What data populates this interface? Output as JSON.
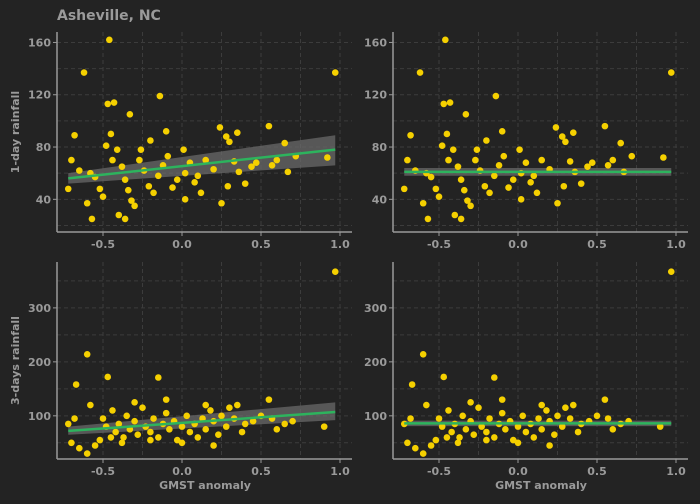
{
  "title": "Asheville, NC",
  "colors": {
    "background": "#232323",
    "point": "#f5d000",
    "fit_line": "#2db35d",
    "band": "#6a6a6a",
    "axis": "#9a9a9a",
    "grid": "#3c3c3c"
  },
  "chart_data": [
    {
      "type": "scatter",
      "panel": "top-left",
      "xlabel": "",
      "ylabel": "1-day rainfall",
      "xlim": [
        -0.8,
        1.0
      ],
      "ylim": [
        15,
        168
      ],
      "xticks": [
        -0.5,
        0.0,
        0.5,
        1.0
      ],
      "yticks": [
        40,
        80,
        120,
        160
      ],
      "grid": true,
      "fit": "linear",
      "fit_line": {
        "x": [
          -0.72,
          0.97
        ],
        "y": [
          56,
          78
        ]
      },
      "band": {
        "x": [
          -0.72,
          0.97
        ],
        "lower": [
          52,
          66
        ],
        "upper": [
          60,
          89
        ]
      },
      "points": [
        [
          -0.62,
          137
        ],
        [
          -0.46,
          162
        ],
        [
          -0.43,
          114
        ],
        [
          -0.14,
          119
        ],
        [
          0.97,
          137
        ],
        [
          -0.47,
          113
        ],
        [
          -0.33,
          105
        ],
        [
          -0.68,
          89
        ],
        [
          -0.7,
          70
        ],
        [
          -0.58,
          60
        ],
        [
          -0.55,
          57
        ],
        [
          -0.52,
          48
        ],
        [
          -0.5,
          42
        ],
        [
          -0.48,
          81
        ],
        [
          -0.45,
          90
        ],
        [
          -0.41,
          78
        ],
        [
          -0.38,
          65
        ],
        [
          -0.36,
          55
        ],
        [
          -0.34,
          47
        ],
        [
          -0.32,
          39
        ],
        [
          -0.3,
          35
        ],
        [
          -0.27,
          70
        ],
        [
          -0.24,
          62
        ],
        [
          -0.21,
          50
        ],
        [
          -0.18,
          45
        ],
        [
          -0.15,
          58
        ],
        [
          -0.12,
          66
        ],
        [
          -0.09,
          73
        ],
        [
          -0.06,
          49
        ],
        [
          -0.03,
          55
        ],
        [
          0.02,
          60
        ],
        [
          0.05,
          68
        ],
        [
          0.08,
          53
        ],
        [
          0.12,
          45
        ],
        [
          0.15,
          70
        ],
        [
          0.2,
          63
        ],
        [
          0.24,
          95
        ],
        [
          0.28,
          88
        ],
        [
          0.3,
          84
        ],
        [
          0.33,
          69
        ],
        [
          0.36,
          61
        ],
        [
          0.4,
          52
        ],
        [
          0.47,
          68
        ],
        [
          0.55,
          96
        ],
        [
          0.57,
          66
        ],
        [
          0.6,
          70
        ],
        [
          0.65,
          83
        ],
        [
          0.72,
          73
        ],
        [
          -0.72,
          48
        ],
        [
          -0.6,
          37
        ],
        [
          -0.57,
          25
        ],
        [
          -0.36,
          25
        ],
        [
          -0.4,
          28
        ],
        [
          0.25,
          37
        ],
        [
          0.02,
          40
        ],
        [
          -0.2,
          85
        ],
        [
          -0.1,
          92
        ],
        [
          0.01,
          78
        ],
        [
          0.35,
          91
        ],
        [
          0.29,
          50
        ],
        [
          -0.65,
          62
        ],
        [
          -0.44,
          70
        ],
        [
          -0.26,
          78
        ],
        [
          0.1,
          58
        ],
        [
          0.44,
          65
        ],
        [
          0.67,
          61
        ],
        [
          0.92,
          72
        ]
      ]
    },
    {
      "type": "scatter",
      "panel": "top-right",
      "xlabel": "",
      "ylabel": "",
      "xlim": [
        -0.8,
        1.0
      ],
      "ylim": [
        15,
        168
      ],
      "xticks": [
        -0.5,
        0.0,
        0.5,
        1.0
      ],
      "yticks": [
        40,
        80,
        120,
        160
      ],
      "grid": true,
      "fit": "constant",
      "fit_line": {
        "x": [
          -0.72,
          0.97
        ],
        "y": [
          61,
          61
        ]
      },
      "band": {
        "x": [
          -0.72,
          0.97
        ],
        "lower": [
          58,
          58
        ],
        "upper": [
          64,
          64
        ]
      },
      "points": [
        [
          -0.62,
          137
        ],
        [
          -0.46,
          162
        ],
        [
          -0.43,
          114
        ],
        [
          -0.14,
          119
        ],
        [
          0.97,
          137
        ],
        [
          -0.47,
          113
        ],
        [
          -0.33,
          105
        ],
        [
          -0.68,
          89
        ],
        [
          -0.7,
          70
        ],
        [
          -0.58,
          60
        ],
        [
          -0.55,
          57
        ],
        [
          -0.52,
          48
        ],
        [
          -0.5,
          42
        ],
        [
          -0.48,
          81
        ],
        [
          -0.45,
          90
        ],
        [
          -0.41,
          78
        ],
        [
          -0.38,
          65
        ],
        [
          -0.36,
          55
        ],
        [
          -0.34,
          47
        ],
        [
          -0.32,
          39
        ],
        [
          -0.3,
          35
        ],
        [
          -0.27,
          70
        ],
        [
          -0.24,
          62
        ],
        [
          -0.21,
          50
        ],
        [
          -0.18,
          45
        ],
        [
          -0.15,
          58
        ],
        [
          -0.12,
          66
        ],
        [
          -0.09,
          73
        ],
        [
          -0.06,
          49
        ],
        [
          -0.03,
          55
        ],
        [
          0.02,
          60
        ],
        [
          0.05,
          68
        ],
        [
          0.08,
          53
        ],
        [
          0.12,
          45
        ],
        [
          0.15,
          70
        ],
        [
          0.2,
          63
        ],
        [
          0.24,
          95
        ],
        [
          0.28,
          88
        ],
        [
          0.3,
          84
        ],
        [
          0.33,
          69
        ],
        [
          0.36,
          61
        ],
        [
          0.4,
          52
        ],
        [
          0.47,
          68
        ],
        [
          0.55,
          96
        ],
        [
          0.57,
          66
        ],
        [
          0.6,
          70
        ],
        [
          0.65,
          83
        ],
        [
          0.72,
          73
        ],
        [
          -0.72,
          48
        ],
        [
          -0.6,
          37
        ],
        [
          -0.57,
          25
        ],
        [
          -0.36,
          25
        ],
        [
          -0.4,
          28
        ],
        [
          0.25,
          37
        ],
        [
          0.02,
          40
        ],
        [
          -0.2,
          85
        ],
        [
          -0.1,
          92
        ],
        [
          0.01,
          78
        ],
        [
          0.35,
          91
        ],
        [
          0.29,
          50
        ],
        [
          -0.65,
          62
        ],
        [
          -0.44,
          70
        ],
        [
          -0.26,
          78
        ],
        [
          0.1,
          58
        ],
        [
          0.44,
          65
        ],
        [
          0.67,
          61
        ],
        [
          0.92,
          72
        ]
      ]
    },
    {
      "type": "scatter",
      "panel": "bottom-left",
      "xlabel": "GMST anomaly",
      "ylabel": "3-days rainfall",
      "xlim": [
        -0.8,
        1.0
      ],
      "ylim": [
        20,
        385
      ],
      "xticks": [
        -0.5,
        0.0,
        0.5,
        1.0
      ],
      "yticks": [
        100,
        200,
        300
      ],
      "grid": true,
      "fit": "linear",
      "fit_line": {
        "x": [
          -0.72,
          0.97
        ],
        "y": [
          72,
          107
        ]
      },
      "band": {
        "x": [
          -0.72,
          0.97
        ],
        "lower": [
          65,
          92
        ],
        "upper": [
          80,
          125
        ]
      },
      "points": [
        [
          -0.6,
          214
        ],
        [
          -0.47,
          172
        ],
        [
          -0.67,
          158
        ],
        [
          -0.15,
          171
        ],
        [
          0.97,
          367
        ],
        [
          -0.58,
          120
        ],
        [
          -0.5,
          95
        ],
        [
          -0.48,
          80
        ],
        [
          -0.44,
          110
        ],
        [
          -0.42,
          70
        ],
        [
          -0.4,
          85
        ],
        [
          -0.37,
          60
        ],
        [
          -0.35,
          100
        ],
        [
          -0.33,
          75
        ],
        [
          -0.3,
          90
        ],
        [
          -0.28,
          65
        ],
        [
          -0.25,
          115
        ],
        [
          -0.23,
          80
        ],
        [
          -0.2,
          70
        ],
        [
          -0.18,
          95
        ],
        [
          -0.15,
          60
        ],
        [
          -0.12,
          85
        ],
        [
          -0.1,
          105
        ],
        [
          -0.08,
          75
        ],
        [
          -0.05,
          90
        ],
        [
          -0.03,
          55
        ],
        [
          0.0,
          80
        ],
        [
          0.03,
          100
        ],
        [
          0.05,
          70
        ],
        [
          0.08,
          85
        ],
        [
          0.1,
          60
        ],
        [
          0.13,
          95
        ],
        [
          0.15,
          75
        ],
        [
          0.18,
          110
        ],
        [
          0.2,
          90
        ],
        [
          0.23,
          65
        ],
        [
          0.25,
          100
        ],
        [
          0.28,
          80
        ],
        [
          0.3,
          115
        ],
        [
          0.33,
          95
        ],
        [
          0.35,
          120
        ],
        [
          0.38,
          70
        ],
        [
          0.4,
          85
        ],
        [
          0.45,
          90
        ],
        [
          0.5,
          100
        ],
        [
          0.55,
          130
        ],
        [
          0.57,
          95
        ],
        [
          0.6,
          75
        ],
        [
          0.65,
          85
        ],
        [
          0.7,
          90
        ],
        [
          0.9,
          80
        ],
        [
          -0.7,
          50
        ],
        [
          -0.65,
          40
        ],
        [
          -0.6,
          30
        ],
        [
          -0.55,
          45
        ],
        [
          -0.52,
          55
        ],
        [
          -0.45,
          60
        ],
        [
          -0.38,
          50
        ],
        [
          -0.2,
          55
        ],
        [
          0.0,
          50
        ],
        [
          0.2,
          45
        ],
        [
          -0.72,
          85
        ],
        [
          -0.68,
          95
        ],
        [
          -0.3,
          125
        ],
        [
          -0.1,
          130
        ],
        [
          0.15,
          120
        ]
      ]
    },
    {
      "type": "scatter",
      "panel": "bottom-right",
      "xlabel": "GMST anomaly",
      "ylabel": "",
      "xlim": [
        -0.8,
        1.0
      ],
      "ylim": [
        20,
        385
      ],
      "xticks": [
        -0.5,
        0.0,
        0.5,
        1.0
      ],
      "yticks": [
        100,
        200,
        300
      ],
      "grid": true,
      "fit": "constant",
      "fit_line": {
        "x": [
          -0.72,
          0.97
        ],
        "y": [
          86,
          86
        ]
      },
      "band": {
        "x": [
          -0.72,
          0.97
        ],
        "lower": [
          81,
          81
        ],
        "upper": [
          91,
          91
        ]
      },
      "points": [
        [
          -0.6,
          214
        ],
        [
          -0.47,
          172
        ],
        [
          -0.67,
          158
        ],
        [
          -0.15,
          171
        ],
        [
          0.97,
          367
        ],
        [
          -0.58,
          120
        ],
        [
          -0.5,
          95
        ],
        [
          -0.48,
          80
        ],
        [
          -0.44,
          110
        ],
        [
          -0.42,
          70
        ],
        [
          -0.4,
          85
        ],
        [
          -0.37,
          60
        ],
        [
          -0.35,
          100
        ],
        [
          -0.33,
          75
        ],
        [
          -0.3,
          90
        ],
        [
          -0.28,
          65
        ],
        [
          -0.25,
          115
        ],
        [
          -0.23,
          80
        ],
        [
          -0.2,
          70
        ],
        [
          -0.18,
          95
        ],
        [
          -0.15,
          60
        ],
        [
          -0.12,
          85
        ],
        [
          -0.1,
          105
        ],
        [
          -0.08,
          75
        ],
        [
          -0.05,
          90
        ],
        [
          -0.03,
          55
        ],
        [
          0.0,
          80
        ],
        [
          0.03,
          100
        ],
        [
          0.05,
          70
        ],
        [
          0.08,
          85
        ],
        [
          0.1,
          60
        ],
        [
          0.13,
          95
        ],
        [
          0.15,
          75
        ],
        [
          0.18,
          110
        ],
        [
          0.2,
          90
        ],
        [
          0.23,
          65
        ],
        [
          0.25,
          100
        ],
        [
          0.28,
          80
        ],
        [
          0.3,
          115
        ],
        [
          0.33,
          95
        ],
        [
          0.35,
          120
        ],
        [
          0.38,
          70
        ],
        [
          0.4,
          85
        ],
        [
          0.45,
          90
        ],
        [
          0.5,
          100
        ],
        [
          0.55,
          130
        ],
        [
          0.57,
          95
        ],
        [
          0.6,
          75
        ],
        [
          0.65,
          85
        ],
        [
          0.7,
          90
        ],
        [
          0.9,
          80
        ],
        [
          -0.7,
          50
        ],
        [
          -0.65,
          40
        ],
        [
          -0.6,
          30
        ],
        [
          -0.55,
          45
        ],
        [
          -0.52,
          55
        ],
        [
          -0.45,
          60
        ],
        [
          -0.38,
          50
        ],
        [
          -0.2,
          55
        ],
        [
          0.0,
          50
        ],
        [
          0.2,
          45
        ],
        [
          -0.72,
          85
        ],
        [
          -0.68,
          95
        ],
        [
          -0.3,
          125
        ],
        [
          -0.1,
          130
        ],
        [
          0.15,
          120
        ]
      ]
    }
  ]
}
